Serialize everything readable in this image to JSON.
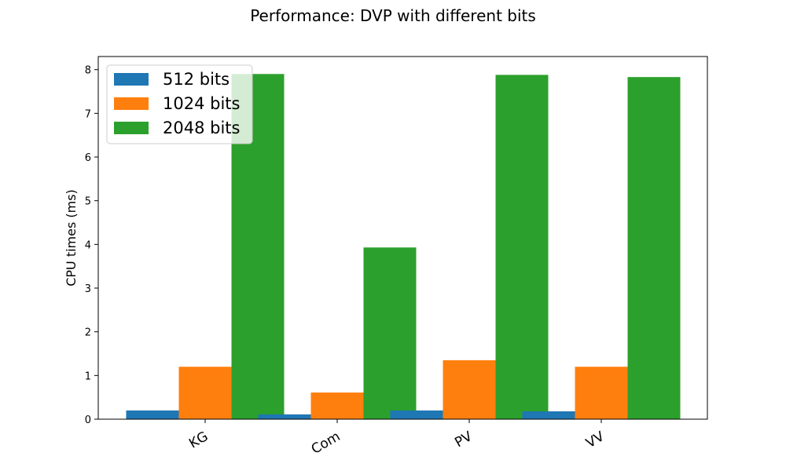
{
  "chart_data": {
    "type": "bar",
    "title": "Performance: DVP with different bits",
    "xlabel": "",
    "ylabel": "CPU times (ms)",
    "categories": [
      "KG",
      "Com",
      "PV",
      "VV"
    ],
    "series": [
      {
        "name": "512 bits",
        "color": "#1f77b4",
        "values": [
          0.2,
          0.11,
          0.2,
          0.18
        ]
      },
      {
        "name": "1024 bits",
        "color": "#ff7f0e",
        "values": [
          1.2,
          0.61,
          1.35,
          1.2
        ]
      },
      {
        "name": "2048 bits",
        "color": "#2ca02c",
        "values": [
          7.9,
          3.93,
          7.88,
          7.83
        ]
      }
    ],
    "ylim": [
      0,
      8.3
    ],
    "yticks": [
      "0",
      "1",
      "2",
      "3",
      "4",
      "5",
      "6",
      "7",
      "8"
    ],
    "legend": "upper-left",
    "grid": false
  }
}
